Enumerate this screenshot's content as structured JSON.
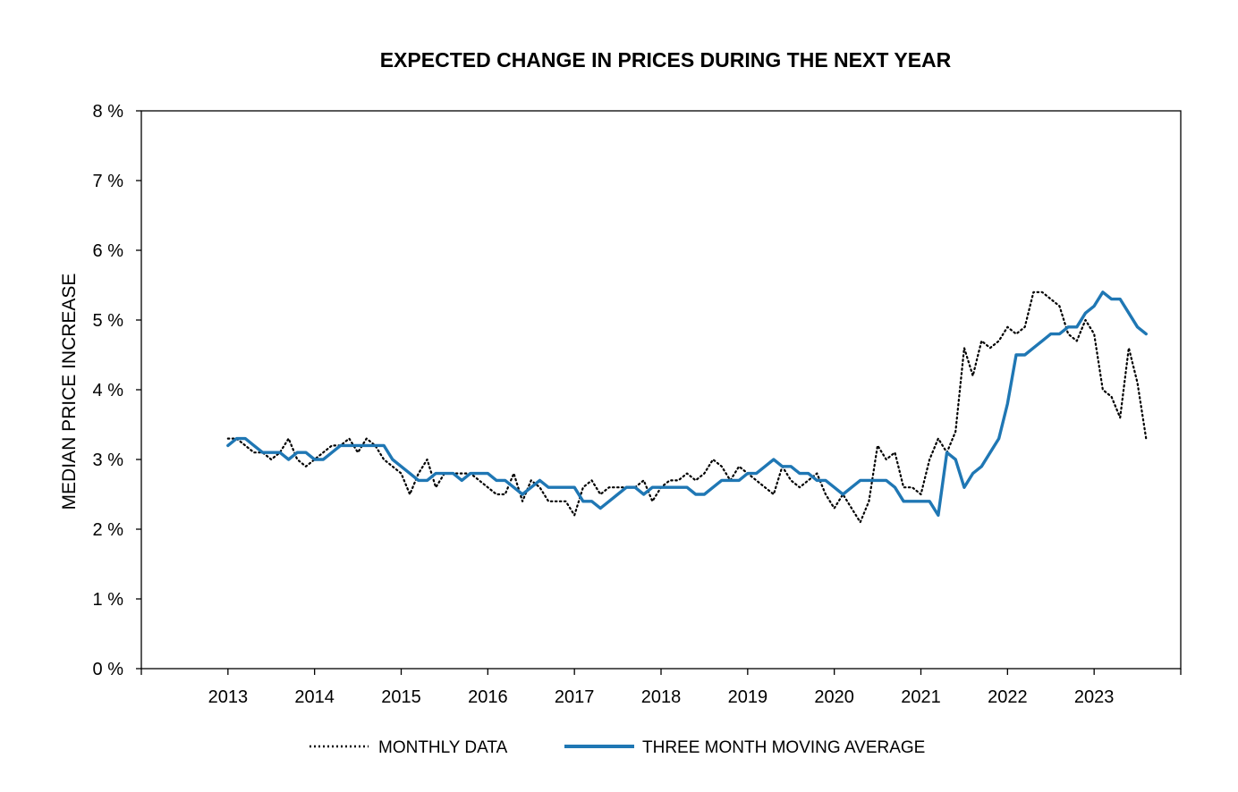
{
  "chart_data": {
    "type": "line",
    "title": "EXPECTED CHANGE IN PRICES DURING THE NEXT YEAR",
    "ylabel": "MEDIAN PRICE INCREASE",
    "xlabel": "",
    "xlim": [
      2012,
      2024
    ],
    "ylim": [
      0,
      8
    ],
    "y_ticks": [
      {
        "value": 0,
        "label": "0 %"
      },
      {
        "value": 1,
        "label": "1 %"
      },
      {
        "value": 2,
        "label": "2 %"
      },
      {
        "value": 3,
        "label": "3 %"
      },
      {
        "value": 4,
        "label": "4 %"
      },
      {
        "value": 5,
        "label": "5 %"
      },
      {
        "value": 6,
        "label": "6 %"
      },
      {
        "value": 7,
        "label": "7 %"
      },
      {
        "value": 8,
        "label": "8 %"
      }
    ],
    "x_ticks": [
      {
        "value": 2013,
        "label": "2013"
      },
      {
        "value": 2014,
        "label": "2014"
      },
      {
        "value": 2015,
        "label": "2015"
      },
      {
        "value": 2016,
        "label": "2016"
      },
      {
        "value": 2017,
        "label": "2017"
      },
      {
        "value": 2018,
        "label": "2018"
      },
      {
        "value": 2019,
        "label": "2019"
      },
      {
        "value": 2020,
        "label": "2020"
      },
      {
        "value": 2021,
        "label": "2021"
      },
      {
        "value": 2022,
        "label": "2022"
      },
      {
        "value": 2023,
        "label": "2023"
      }
    ],
    "x_minor_ticks": [
      2012,
      2013,
      2014,
      2015,
      2016,
      2017,
      2018,
      2019,
      2020,
      2021,
      2022,
      2023,
      2024
    ],
    "grid": false,
    "legend": "bottom",
    "series": [
      {
        "name": "MONTHLY DATA",
        "style": "dotted",
        "color": "#000000",
        "points": [
          [
            2013.0,
            3.3
          ],
          [
            2013.1,
            3.3
          ],
          [
            2013.2,
            3.2
          ],
          [
            2013.3,
            3.1
          ],
          [
            2013.4,
            3.1
          ],
          [
            2013.5,
            3.0
          ],
          [
            2013.6,
            3.1
          ],
          [
            2013.7,
            3.3
          ],
          [
            2013.8,
            3.0
          ],
          [
            2013.9,
            2.9
          ],
          [
            2014.0,
            3.0
          ],
          [
            2014.1,
            3.1
          ],
          [
            2014.2,
            3.2
          ],
          [
            2014.3,
            3.2
          ],
          [
            2014.4,
            3.3
          ],
          [
            2014.5,
            3.1
          ],
          [
            2014.6,
            3.3
          ],
          [
            2014.7,
            3.2
          ],
          [
            2014.8,
            3.0
          ],
          [
            2014.9,
            2.9
          ],
          [
            2015.0,
            2.8
          ],
          [
            2015.1,
            2.5
          ],
          [
            2015.2,
            2.8
          ],
          [
            2015.3,
            3.0
          ],
          [
            2015.4,
            2.6
          ],
          [
            2015.5,
            2.8
          ],
          [
            2015.6,
            2.8
          ],
          [
            2015.7,
            2.8
          ],
          [
            2015.8,
            2.8
          ],
          [
            2015.9,
            2.7
          ],
          [
            2016.0,
            2.6
          ],
          [
            2016.1,
            2.5
          ],
          [
            2016.2,
            2.5
          ],
          [
            2016.3,
            2.8
          ],
          [
            2016.4,
            2.4
          ],
          [
            2016.5,
            2.7
          ],
          [
            2016.6,
            2.6
          ],
          [
            2016.7,
            2.4
          ],
          [
            2016.8,
            2.4
          ],
          [
            2016.9,
            2.4
          ],
          [
            2017.0,
            2.2
          ],
          [
            2017.1,
            2.6
          ],
          [
            2017.2,
            2.7
          ],
          [
            2017.3,
            2.5
          ],
          [
            2017.4,
            2.6
          ],
          [
            2017.5,
            2.6
          ],
          [
            2017.6,
            2.6
          ],
          [
            2017.7,
            2.6
          ],
          [
            2017.8,
            2.7
          ],
          [
            2017.9,
            2.4
          ],
          [
            2018.0,
            2.6
          ],
          [
            2018.1,
            2.7
          ],
          [
            2018.2,
            2.7
          ],
          [
            2018.3,
            2.8
          ],
          [
            2018.4,
            2.7
          ],
          [
            2018.5,
            2.8
          ],
          [
            2018.6,
            3.0
          ],
          [
            2018.7,
            2.9
          ],
          [
            2018.8,
            2.7
          ],
          [
            2018.9,
            2.9
          ],
          [
            2019.0,
            2.8
          ],
          [
            2019.1,
            2.7
          ],
          [
            2019.2,
            2.6
          ],
          [
            2019.3,
            2.5
          ],
          [
            2019.4,
            2.9
          ],
          [
            2019.5,
            2.7
          ],
          [
            2019.6,
            2.6
          ],
          [
            2019.7,
            2.7
          ],
          [
            2019.8,
            2.8
          ],
          [
            2019.9,
            2.5
          ],
          [
            2020.0,
            2.3
          ],
          [
            2020.1,
            2.5
          ],
          [
            2020.2,
            2.3
          ],
          [
            2020.3,
            2.1
          ],
          [
            2020.4,
            2.4
          ],
          [
            2020.5,
            3.2
          ],
          [
            2020.6,
            3.0
          ],
          [
            2020.7,
            3.1
          ],
          [
            2020.8,
            2.6
          ],
          [
            2020.9,
            2.6
          ],
          [
            2021.0,
            2.5
          ],
          [
            2021.1,
            3.0
          ],
          [
            2021.2,
            3.3
          ],
          [
            2021.3,
            3.1
          ],
          [
            2021.4,
            3.4
          ],
          [
            2021.5,
            4.6
          ],
          [
            2021.6,
            4.2
          ],
          [
            2021.7,
            4.7
          ],
          [
            2021.8,
            4.6
          ],
          [
            2021.9,
            4.7
          ],
          [
            2022.0,
            4.9
          ],
          [
            2022.1,
            4.8
          ],
          [
            2022.2,
            4.9
          ],
          [
            2022.3,
            5.4
          ],
          [
            2022.4,
            5.4
          ],
          [
            2022.5,
            5.3
          ],
          [
            2022.6,
            5.2
          ],
          [
            2022.7,
            4.8
          ],
          [
            2022.8,
            4.7
          ],
          [
            2022.9,
            5.0
          ],
          [
            2023.0,
            4.8
          ],
          [
            2023.1,
            4.0
          ],
          [
            2023.2,
            3.9
          ],
          [
            2023.3,
            3.6
          ],
          [
            2023.4,
            4.6
          ],
          [
            2023.5,
            4.1
          ],
          [
            2023.6,
            3.3
          ]
        ]
      },
      {
        "name": "THREE MONTH MOVING AVERAGE",
        "style": "solid",
        "color": "#1f77b4",
        "points": [
          [
            2013.0,
            3.2
          ],
          [
            2013.1,
            3.3
          ],
          [
            2013.2,
            3.3
          ],
          [
            2013.3,
            3.2
          ],
          [
            2013.4,
            3.1
          ],
          [
            2013.5,
            3.1
          ],
          [
            2013.6,
            3.1
          ],
          [
            2013.7,
            3.0
          ],
          [
            2013.8,
            3.1
          ],
          [
            2013.9,
            3.1
          ],
          [
            2014.0,
            3.0
          ],
          [
            2014.1,
            3.0
          ],
          [
            2014.2,
            3.1
          ],
          [
            2014.3,
            3.2
          ],
          [
            2014.4,
            3.2
          ],
          [
            2014.5,
            3.2
          ],
          [
            2014.6,
            3.2
          ],
          [
            2014.7,
            3.2
          ],
          [
            2014.8,
            3.2
          ],
          [
            2014.9,
            3.0
          ],
          [
            2015.0,
            2.9
          ],
          [
            2015.1,
            2.8
          ],
          [
            2015.2,
            2.7
          ],
          [
            2015.3,
            2.7
          ],
          [
            2015.4,
            2.8
          ],
          [
            2015.5,
            2.8
          ],
          [
            2015.6,
            2.8
          ],
          [
            2015.7,
            2.7
          ],
          [
            2015.8,
            2.8
          ],
          [
            2015.9,
            2.8
          ],
          [
            2016.0,
            2.8
          ],
          [
            2016.1,
            2.7
          ],
          [
            2016.2,
            2.7
          ],
          [
            2016.3,
            2.6
          ],
          [
            2016.4,
            2.5
          ],
          [
            2016.5,
            2.6
          ],
          [
            2016.6,
            2.7
          ],
          [
            2016.7,
            2.6
          ],
          [
            2016.8,
            2.6
          ],
          [
            2016.9,
            2.6
          ],
          [
            2017.0,
            2.6
          ],
          [
            2017.1,
            2.4
          ],
          [
            2017.2,
            2.4
          ],
          [
            2017.3,
            2.3
          ],
          [
            2017.4,
            2.4
          ],
          [
            2017.5,
            2.5
          ],
          [
            2017.6,
            2.6
          ],
          [
            2017.7,
            2.6
          ],
          [
            2017.8,
            2.5
          ],
          [
            2017.9,
            2.6
          ],
          [
            2018.0,
            2.6
          ],
          [
            2018.1,
            2.6
          ],
          [
            2018.2,
            2.6
          ],
          [
            2018.3,
            2.6
          ],
          [
            2018.4,
            2.5
          ],
          [
            2018.5,
            2.5
          ],
          [
            2018.6,
            2.6
          ],
          [
            2018.7,
            2.7
          ],
          [
            2018.8,
            2.7
          ],
          [
            2018.9,
            2.7
          ],
          [
            2019.0,
            2.8
          ],
          [
            2019.1,
            2.8
          ],
          [
            2019.2,
            2.9
          ],
          [
            2019.3,
            3.0
          ],
          [
            2019.4,
            2.9
          ],
          [
            2019.5,
            2.9
          ],
          [
            2019.6,
            2.8
          ],
          [
            2019.7,
            2.8
          ],
          [
            2019.8,
            2.7
          ],
          [
            2019.9,
            2.7
          ],
          [
            2020.0,
            2.6
          ],
          [
            2020.1,
            2.5
          ],
          [
            2020.2,
            2.6
          ],
          [
            2020.3,
            2.7
          ],
          [
            2020.4,
            2.7
          ],
          [
            2020.5,
            2.7
          ],
          [
            2020.6,
            2.7
          ],
          [
            2020.7,
            2.6
          ],
          [
            2020.8,
            2.4
          ],
          [
            2020.9,
            2.4
          ],
          [
            2021.0,
            2.4
          ],
          [
            2021.1,
            2.4
          ],
          [
            2021.2,
            2.2
          ],
          [
            2021.3,
            3.1
          ],
          [
            2021.4,
            3.0
          ],
          [
            2021.5,
            2.6
          ],
          [
            2021.6,
            2.8
          ],
          [
            2021.7,
            2.9
          ],
          [
            2021.8,
            3.1
          ],
          [
            2021.9,
            3.3
          ],
          [
            2022.0,
            3.8
          ],
          [
            2022.1,
            4.5
          ],
          [
            2022.2,
            4.5
          ],
          [
            2022.3,
            4.6
          ],
          [
            2022.4,
            4.7
          ],
          [
            2022.5,
            4.8
          ],
          [
            2022.6,
            4.8
          ],
          [
            2022.7,
            4.9
          ],
          [
            2022.8,
            4.9
          ],
          [
            2022.9,
            5.1
          ],
          [
            2023.0,
            5.2
          ],
          [
            2023.1,
            5.4
          ],
          [
            2023.2,
            5.3
          ],
          [
            2023.3,
            5.3
          ],
          [
            2023.4,
            5.1
          ],
          [
            2023.5,
            4.9
          ],
          [
            2023.6,
            4.8
          ]
        ]
      }
    ]
  }
}
